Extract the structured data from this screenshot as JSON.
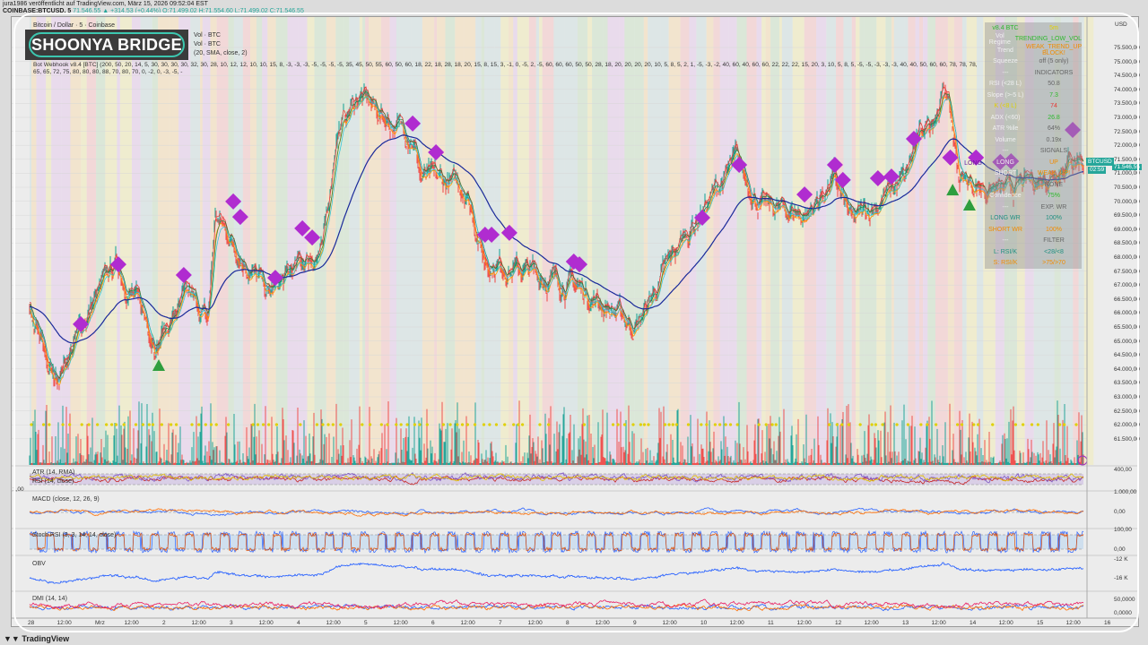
{
  "header": {
    "published": "jura1986 veröffentlicht auf TradingView.com, März 15, 2026 09:52:04 EST",
    "symbol": "COINBASE:BTCUSD, 5",
    "last": "71.546,55",
    "change": "▲ +314,53 (+0,44%)",
    "open": "O:71.499,02",
    "high": "H:71.554,60",
    "low": "L:71.499,02",
    "close": "C:71.546,55"
  },
  "logo_text": "SHOONYA BRIDGE",
  "legend": [
    "Bitcoin / Dollar · 5 · Coinbase",
    "Vol · BTC",
    "Vol · BTC",
    "(20, SMA, close, 2)",
    "Bot Webhook v8.4 [BTC] (200, 50, 20, 14, 5, 30, 30, 30, 30, 32, 30, 28, 10, 12, 12, 10, 10, 15, 8, -3, -3, -3, -5, -5, -5, -5, 35, 45, 50, 55, 60, 50, 60, 18, 22, 18, 28, 18, 20, 15, 8, 15, 3, -1, 0, -5, 2, -5, 60, 60, 60, 50, 50, 28, 18, 20, 20, 20, 20, 10, 5, 8, 5, 2, 1, -5, -3, -2, 40, 60, 40, 60, 60, 22, 22, 22, 15, 20, 3, 10, 5, 8, 5, -5, -5, -3, -3, -3, 40, 40, 50, 60, 60, 78, 78, 78, 65, 65, 72, 75, 80, 80, 80, 88, 70, 80, 70, 0, -2, 0, -3, -5, -"
  ],
  "table": [
    {
      "l": "v8.4 BTC",
      "r": "5m",
      "lc": "#2eb82e",
      "rc": "#e0d000"
    },
    {
      "l": "Vol Regime",
      "r": "TRENDING_LOW_VOL",
      "rc": "#2eb82e"
    },
    {
      "l": "Trend",
      "r": "WEAK_TREND_UP BLOCK!",
      "rc": "#f08c00"
    },
    {
      "l": "Squeeze",
      "r": "off (5 only)"
    },
    {
      "l": "---",
      "r": "INDICATORS"
    },
    {
      "l": "RSI (<28 L)",
      "r": "50.8"
    },
    {
      "l": "Slope (>-5 L)",
      "r": "7.3",
      "rc": "#2eb82e"
    },
    {
      "l": "K (<8 L)",
      "r": "74",
      "lc": "#e0d000",
      "rc": "#e53935"
    },
    {
      "l": "ADX (<60)",
      "r": "26.8",
      "rc": "#2eb82e"
    },
    {
      "l": "ATR %ile",
      "r": "64%"
    },
    {
      "l": "Volume",
      "r": "0.19x"
    },
    {
      "l": "---",
      "r": "SIGNALS"
    },
    {
      "l": "LONG",
      "r": "UP",
      "rc": "#f08c00"
    },
    {
      "l": "SHORT",
      "r": "WEAK_UP!",
      "rc": "#f08c00"
    },
    {
      "l": "",
      "r": "NONE"
    },
    {
      "l": "Confidence",
      "r": "75%",
      "rc": "#2eb82e"
    },
    {
      "l": "---",
      "r": "EXP. WR"
    },
    {
      "l": "LONG WR",
      "r": "100%",
      "lc": "#1f8f80",
      "rc": "#1f8f80"
    },
    {
      "l": "SHORT WR",
      "r": "100%",
      "lc": "#f08c00",
      "rc": "#f08c00"
    },
    {
      "l": "---",
      "r": "FILTER"
    },
    {
      "l": "L: RSI/K",
      "r": "<28/<8",
      "lc": "#1f8f80",
      "rc": "#1f8f80"
    },
    {
      "l": "S: RSI/K",
      "r": ">75/>70",
      "lc": "#f08c00",
      "rc": "#f08c00"
    }
  ],
  "price_axis": {
    "currency": "USD",
    "labels": [
      "75.500,00",
      "75.000,00",
      "74.500,00",
      "74.000,00",
      "73.500,00",
      "73.000,00",
      "72.500,00",
      "72.000,00",
      "71.500,00",
      "71.000,00",
      "70.500,00",
      "70.000,00",
      "69.500,00",
      "69.000,00",
      "68.500,00",
      "68.000,00",
      "67.500,00",
      "67.000,00",
      "66.500,00",
      "66.000,00",
      "65.500,00",
      "65.000,00",
      "64.500,00",
      "64.000,00",
      "63.500,00",
      "63.000,00",
      "62.500,00",
      "62.000,00",
      "61.500,00"
    ],
    "badge_symbol": "BTCUSD",
    "badge_price": "71.546,55",
    "badge_countdown": "02:59"
  },
  "sub_axis": {
    "atr_top": "400,00",
    "rsi_top": "1.000,00",
    "macd_zero": "0,00",
    "stoch_top": "100,00",
    "stoch_bottom": "0,00",
    "obv_a": "-12 K",
    "obv_b": "-16 K",
    "dmi_top": "50,0000",
    "dmi_bottom": "0,0000",
    "left_frag": "1,00"
  },
  "panels": {
    "atr": "ATR (14, RMA)",
    "rsi": "RSI (14, close)",
    "macd": "MACD (close, 12, 26, 9)",
    "stoch": "Stoch RSI (3, 3, 14, 14, close)",
    "obv": "OBV",
    "dmi": "DMI (14, 14)"
  },
  "time_axis": [
    "28",
    "12:00",
    "Mrz",
    "12:00",
    "2",
    "12:00",
    "3",
    "12:00",
    "4",
    "12:00",
    "5",
    "12:00",
    "6",
    "12:00",
    "7",
    "12:00",
    "8",
    "12:00",
    "9",
    "12:00",
    "10",
    "12:00",
    "11",
    "12:00",
    "12",
    "12:00",
    "13",
    "12:00",
    "14",
    "12:00",
    "15",
    "12:00",
    "16"
  ],
  "footer": "TradingView",
  "colors": {
    "up": "#26a69a",
    "down": "#ef5350",
    "signal": "#b02cd0",
    "long_triangle": "#2e9e3e",
    "slow_ma": "#1a2a9a"
  },
  "price_path": [
    [
      "2026-02-28T00:00",
      66000
    ],
    [
      "2026-02-28T08:40",
      63500
    ],
    [
      "2026-03-01T00:00",
      66600
    ],
    [
      "2026-03-01T07:00",
      67750
    ],
    [
      "2026-03-01T21:25",
      65000
    ],
    [
      "2026-03-02T08:40",
      66600
    ],
    [
      "2026-03-02T15:40",
      65650
    ],
    [
      "2026-03-02T18:15",
      69500
    ],
    [
      "2026-03-03T13:25",
      66600
    ],
    [
      "2026-03-04T02:15",
      67900
    ],
    [
      "2026-03-04T08:40",
      68200
    ],
    [
      "2026-03-04T13:25",
      72400
    ],
    [
      "2026-03-04T21:25",
      73800
    ],
    [
      "2026-03-05T10:15",
      72700
    ],
    [
      "2026-03-05T16:40",
      72400
    ],
    [
      "2026-03-05T19:50",
      70800
    ],
    [
      "2026-03-06T11:50",
      70500
    ],
    [
      "2026-03-06T18:15",
      67900
    ],
    [
      "2026-03-08T02:15",
      67000
    ],
    [
      "2026-03-09T00:40",
      65500
    ],
    [
      "2026-03-09T16:40",
      68600
    ],
    [
      "2026-03-10T11:50",
      71400
    ],
    [
      "2026-03-10T21:25",
      69800
    ],
    [
      "2026-03-11T13:25",
      69500
    ],
    [
      "2026-03-11T23:00",
      70800
    ],
    [
      "2026-03-12T05:30",
      69200
    ],
    [
      "2026-03-13T00:40",
      70800
    ],
    [
      "2026-03-13T03:50",
      71900
    ],
    [
      "2026-03-13T15:05",
      74000
    ],
    [
      "2026-03-13T19:50",
      70800
    ],
    [
      "2026-03-14T11:50",
      70300
    ],
    [
      "2026-03-15T00:40",
      70800
    ],
    [
      "2026-03-15T11:50",
      71600
    ],
    [
      "2026-03-15T16:00",
      71546.55
    ]
  ],
  "signals": [
    [
      "2026-02-28T18:15",
      65600
    ],
    [
      "2026-03-01T07:40",
      67740
    ],
    [
      "2026-03-02T07:00",
      67360
    ],
    [
      "2026-03-03T00:40",
      69990
    ],
    [
      "2026-03-03T03:10",
      69440
    ],
    [
      "2026-03-03T15:40",
      67260
    ],
    [
      "2026-03-04T01:20",
      69030
    ],
    [
      "2026-03-04T04:50",
      68700
    ],
    [
      "2026-03-05T16:40",
      72780
    ],
    [
      "2026-03-06T01:00",
      71750
    ],
    [
      "2026-03-06T18:30",
      68800
    ],
    [
      "2026-03-06T20:50",
      68800
    ],
    [
      "2026-03-07T03:10",
      68870
    ],
    [
      "2026-03-08T02:10",
      67840
    ],
    [
      "2026-03-08T04:10",
      67740
    ],
    [
      "2026-03-10T00:00",
      69410
    ],
    [
      "2026-03-10T13:10",
      71300
    ],
    [
      "2026-03-11T12:30",
      70240
    ],
    [
      "2026-03-11T23:20",
      71300
    ],
    [
      "2026-03-12T02:10",
      70760
    ],
    [
      "2026-03-12T14:40",
      70820
    ],
    [
      "2026-03-12T19:30",
      70880
    ],
    [
      "2026-03-13T03:30",
      72230
    ],
    [
      "2026-03-13T16:30",
      71560
    ],
    [
      "2026-03-14T01:40",
      71560
    ],
    [
      "2026-03-14T10:20",
      71400
    ],
    [
      "2026-03-14T14:10",
      71430
    ],
    [
      "2026-03-15T12:10",
      72550
    ]
  ],
  "long_signal_label": "LONG",
  "triangles": [
    [
      "2026-03-01T22:05",
      64120
    ],
    [
      "2026-03-13T17:20",
      70400
    ],
    [
      "2026-03-13T23:20",
      69860
    ]
  ]
}
